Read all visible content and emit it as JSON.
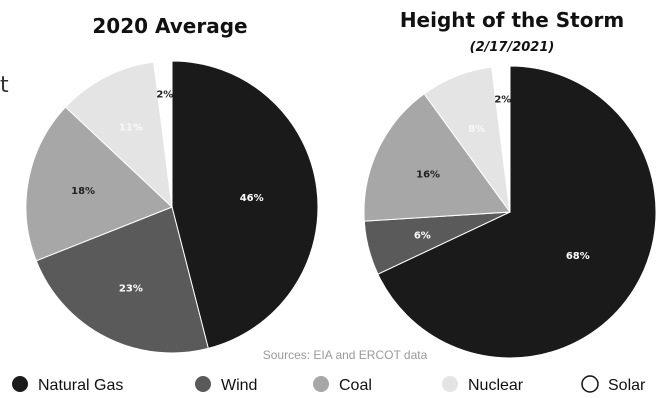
{
  "stray_mark": "t",
  "source_note": "Sources: EIA and ERCOT data",
  "chart_data": [
    {
      "type": "pie",
      "title": "2020 Average",
      "subtitle": "",
      "slices": [
        {
          "label": "Natural Gas",
          "value": 46,
          "display": "46%",
          "color": "#1a1a1a"
        },
        {
          "label": "Wind",
          "value": 23,
          "display": "23%",
          "color": "#5a5a5a"
        },
        {
          "label": "Coal",
          "value": 18,
          "display": "18%",
          "color": "#a7a7a7"
        },
        {
          "label": "Nuclear",
          "value": 11,
          "display": "11%",
          "color": "#e4e4e4"
        },
        {
          "label": "Solar",
          "value": 2,
          "display": "2%",
          "color": "#ffffff"
        }
      ]
    },
    {
      "type": "pie",
      "title": "Height of the Storm",
      "subtitle": "(2/17/2021)",
      "slices": [
        {
          "label": "Natural Gas",
          "value": 68,
          "display": "68%",
          "color": "#1a1a1a"
        },
        {
          "label": "Wind",
          "value": 6,
          "display": "6%",
          "color": "#5a5a5a"
        },
        {
          "label": "Coal",
          "value": 16,
          "display": "16%",
          "color": "#a7a7a7"
        },
        {
          "label": "Nuclear",
          "value": 8,
          "display": "8%",
          "color": "#e4e4e4"
        },
        {
          "label": "Solar",
          "value": 2,
          "display": "2%",
          "color": "#ffffff"
        }
      ]
    }
  ],
  "legend": [
    {
      "label": "Natural Gas",
      "color": "#1a1a1a"
    },
    {
      "label": "Wind",
      "color": "#5a5a5a"
    },
    {
      "label": "Coal",
      "color": "#a7a7a7"
    },
    {
      "label": "Nuclear",
      "color": "#e4e4e4"
    },
    {
      "label": "Solar",
      "color": "#ffffff"
    }
  ]
}
